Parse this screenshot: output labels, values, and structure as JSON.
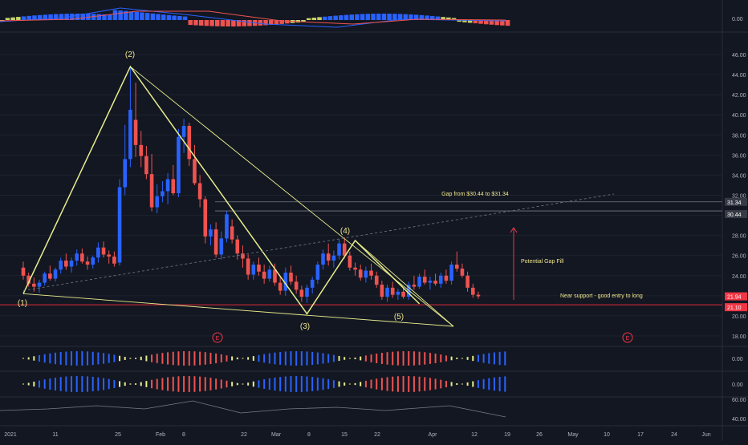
{
  "colors": {
    "background": "#131722",
    "candle_up": "#2962ff",
    "candle_down": "#ef5350",
    "pattern_line": "#e8ee8c",
    "gap_line": "#b2b5be",
    "support_line": "#e0283a",
    "target_arrow": "#f23645",
    "label_text": "#f0e68c"
  },
  "price_axis": {
    "ticks": [
      "46.00",
      "44.00",
      "42.00",
      "40.00",
      "38.00",
      "36.00",
      "34.00",
      "32.00",
      "28.00",
      "26.00",
      "24.00",
      "20.00",
      "18.00"
    ],
    "badges": [
      {
        "label": "31.34",
        "color": "#363a45"
      },
      {
        "label": "30.44",
        "color": "#363a45"
      },
      {
        "label": "21.94",
        "color": "#f23645"
      },
      {
        "label": "21.10",
        "color": "#f23645"
      }
    ]
  },
  "time_axis": {
    "labels": [
      "2021",
      "11",
      "25",
      "Feb",
      "8",
      "22",
      "Mar",
      "8",
      "15",
      "22",
      "Apr",
      "12",
      "19",
      "26",
      "May",
      "10",
      "17",
      "24",
      "Jun"
    ]
  },
  "indicator_axes": {
    "macd_zero": "0.00",
    "osc1_zero": "0.00",
    "osc2_zero": "0.00",
    "rsi_top": "60.00",
    "rsi_bottom": "40.00"
  },
  "annotations": {
    "wave_labels": [
      "(1)",
      "(2)",
      "(3)",
      "(4)",
      "(5)"
    ],
    "gap_label": "Gap from $30.44 to $31.34",
    "target_label": "Potential Gap Fill",
    "support_label": "Near support - good entry to long",
    "earnings_marker": "E"
  },
  "chart_data": {
    "type": "candlestick",
    "ylim": [
      17,
      47.5
    ],
    "gap": {
      "low": 30.44,
      "high": 31.34
    },
    "support": 21.1,
    "last_price": 21.94,
    "waves": [
      {
        "label": "(1)",
        "time_index": 0,
        "price": 22.2
      },
      {
        "label": "(2)",
        "time_index": 20,
        "price": 44.8
      },
      {
        "label": "(3)",
        "time_index": 53,
        "price": 20.2
      },
      {
        "label": "(4)",
        "time_index": 62,
        "price": 27.5
      },
      {
        "label": "(5)",
        "time_index": 74,
        "price": 21.2
      }
    ],
    "candles": [
      [
        24.8,
        25.4,
        23.6,
        24.0
      ],
      [
        24.0,
        24.3,
        22.9,
        23.2
      ],
      [
        23.2,
        23.8,
        22.4,
        22.9
      ],
      [
        22.9,
        23.6,
        22.3,
        23.3
      ],
      [
        23.3,
        24.4,
        23.0,
        24.2
      ],
      [
        24.2,
        25.0,
        23.5,
        23.7
      ],
      [
        23.7,
        24.8,
        23.4,
        24.6
      ],
      [
        24.6,
        25.8,
        24.2,
        25.5
      ],
      [
        25.5,
        26.2,
        24.6,
        24.9
      ],
      [
        24.9,
        25.8,
        24.3,
        25.5
      ],
      [
        25.5,
        26.6,
        25.0,
        26.2
      ],
      [
        26.2,
        26.7,
        25.2,
        25.4
      ],
      [
        25.4,
        25.9,
        24.6,
        25.1
      ],
      [
        25.1,
        26.0,
        24.7,
        25.8
      ],
      [
        25.8,
        27.3,
        25.3,
        26.8
      ],
      [
        26.8,
        27.4,
        25.8,
        26.1
      ],
      [
        26.1,
        26.5,
        25.2,
        25.9
      ],
      [
        25.9,
        26.4,
        24.9,
        25.2
      ],
      [
        25.3,
        33.6,
        25.0,
        32.8
      ],
      [
        32.8,
        39.0,
        32.0,
        35.6
      ],
      [
        35.6,
        44.8,
        34.8,
        40.5
      ],
      [
        39.5,
        43.2,
        35.8,
        37.0
      ],
      [
        37.0,
        38.4,
        34.8,
        35.9
      ],
      [
        35.9,
        36.9,
        33.6,
        34.1
      ],
      [
        34.1,
        36.1,
        30.4,
        30.8
      ],
      [
        30.8,
        33.1,
        30.2,
        31.9
      ],
      [
        31.9,
        33.4,
        31.3,
        32.4
      ],
      [
        32.4,
        34.2,
        31.1,
        33.6
      ],
      [
        33.6,
        35.0,
        32.0,
        32.2
      ],
      [
        32.2,
        38.6,
        31.8,
        37.8
      ],
      [
        37.8,
        39.6,
        36.2,
        38.9
      ],
      [
        38.9,
        39.2,
        34.9,
        35.6
      ],
      [
        35.6,
        37.0,
        33.0,
        33.2
      ],
      [
        33.2,
        34.0,
        30.8,
        31.6
      ],
      [
        31.6,
        31.9,
        27.2,
        27.9
      ],
      [
        27.9,
        29.1,
        27.0,
        28.6
      ],
      [
        28.6,
        29.3,
        25.8,
        26.1
      ],
      [
        26.1,
        28.4,
        25.6,
        27.7
      ],
      [
        27.7,
        30.4,
        27.3,
        30.1
      ],
      [
        28.9,
        29.6,
        27.2,
        27.6
      ],
      [
        27.6,
        28.0,
        25.6,
        26.2
      ],
      [
        26.2,
        27.0,
        24.8,
        25.7
      ],
      [
        25.7,
        26.1,
        23.6,
        24.1
      ],
      [
        24.1,
        25.4,
        23.6,
        25.1
      ],
      [
        25.1,
        25.8,
        24.0,
        24.4
      ],
      [
        24.4,
        25.1,
        23.2,
        23.7
      ],
      [
        23.7,
        25.0,
        23.4,
        24.6
      ],
      [
        24.6,
        25.2,
        23.0,
        23.3
      ],
      [
        23.3,
        23.9,
        22.1,
        22.5
      ],
      [
        22.5,
        24.8,
        22.0,
        24.3
      ],
      [
        24.3,
        25.0,
        23.1,
        23.4
      ],
      [
        23.4,
        24.0,
        22.2,
        22.6
      ],
      [
        22.6,
        23.0,
        21.4,
        21.9
      ],
      [
        21.9,
        23.1,
        21.3,
        22.8
      ],
      [
        22.8,
        23.9,
        22.2,
        23.6
      ],
      [
        23.6,
        25.4,
        23.2,
        25.1
      ],
      [
        25.1,
        26.6,
        24.6,
        26.2
      ],
      [
        26.2,
        27.2,
        25.0,
        25.5
      ],
      [
        25.5,
        26.5,
        24.8,
        26.0
      ],
      [
        26.0,
        27.6,
        25.6,
        27.2
      ],
      [
        27.2,
        27.8,
        25.7,
        26.0
      ],
      [
        26.0,
        26.4,
        24.5,
        24.8
      ],
      [
        24.8,
        25.3,
        24.0,
        24.6
      ],
      [
        24.6,
        25.1,
        23.5,
        23.8
      ],
      [
        23.8,
        24.9,
        23.3,
        24.5
      ],
      [
        24.5,
        25.2,
        23.6,
        24.0
      ],
      [
        24.0,
        24.4,
        22.8,
        23.1
      ],
      [
        23.1,
        23.5,
        21.6,
        21.9
      ],
      [
        21.9,
        23.1,
        21.4,
        22.8
      ],
      [
        22.8,
        23.4,
        21.8,
        22.1
      ],
      [
        22.1,
        22.7,
        21.6,
        22.4
      ],
      [
        22.4,
        22.8,
        21.7,
        21.9
      ],
      [
        21.9,
        23.4,
        21.6,
        23.1
      ],
      [
        23.1,
        24.0,
        22.6,
        22.9
      ],
      [
        22.9,
        24.2,
        22.7,
        23.9
      ],
      [
        23.9,
        24.6,
        23.1,
        23.3
      ],
      [
        23.3,
        23.9,
        22.6,
        23.5
      ],
      [
        23.5,
        24.2,
        23.0,
        23.2
      ],
      [
        23.2,
        24.3,
        22.8,
        24.0
      ],
      [
        24.0,
        24.6,
        23.2,
        23.5
      ],
      [
        23.5,
        25.4,
        23.1,
        25.1
      ],
      [
        25.1,
        26.4,
        24.4,
        24.7
      ],
      [
        24.7,
        25.2,
        23.8,
        24.0
      ],
      [
        24.0,
        24.4,
        22.4,
        22.8
      ],
      [
        22.8,
        23.2,
        21.8,
        22.1
      ],
      [
        22.1,
        22.4,
        21.7,
        21.94
      ]
    ]
  }
}
